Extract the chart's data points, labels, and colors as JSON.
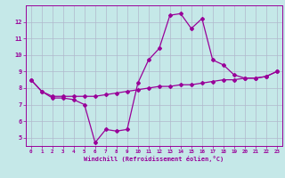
{
  "xlabel": "Windchill (Refroidissement éolien,°C)",
  "bg_color": "#c5e8e8",
  "line_color": "#990099",
  "grid_color": "#b0b8cc",
  "x_data": [
    0,
    1,
    2,
    3,
    4,
    5,
    6,
    7,
    8,
    9,
    10,
    11,
    12,
    13,
    14,
    15,
    16,
    17,
    18,
    19,
    20,
    21,
    22,
    23
  ],
  "y_windchill": [
    8.5,
    7.8,
    7.4,
    7.4,
    7.3,
    7.0,
    4.7,
    5.5,
    5.4,
    5.5,
    8.3,
    9.7,
    10.4,
    12.4,
    12.5,
    11.6,
    12.2,
    9.7,
    9.4,
    8.8,
    8.6,
    8.6,
    8.7,
    9.0
  ],
  "y_temp": [
    8.5,
    7.8,
    7.5,
    7.5,
    7.5,
    7.5,
    7.5,
    7.6,
    7.7,
    7.8,
    7.9,
    8.0,
    8.1,
    8.1,
    8.2,
    8.2,
    8.3,
    8.4,
    8.5,
    8.5,
    8.6,
    8.6,
    8.7,
    9.0
  ],
  "ylim": [
    4.5,
    13.0
  ],
  "xlim": [
    -0.5,
    23.5
  ],
  "yticks": [
    5,
    6,
    7,
    8,
    9,
    10,
    11,
    12
  ],
  "xticks": [
    0,
    1,
    2,
    3,
    4,
    5,
    6,
    7,
    8,
    9,
    10,
    11,
    12,
    13,
    14,
    15,
    16,
    17,
    18,
    19,
    20,
    21,
    22,
    23
  ]
}
